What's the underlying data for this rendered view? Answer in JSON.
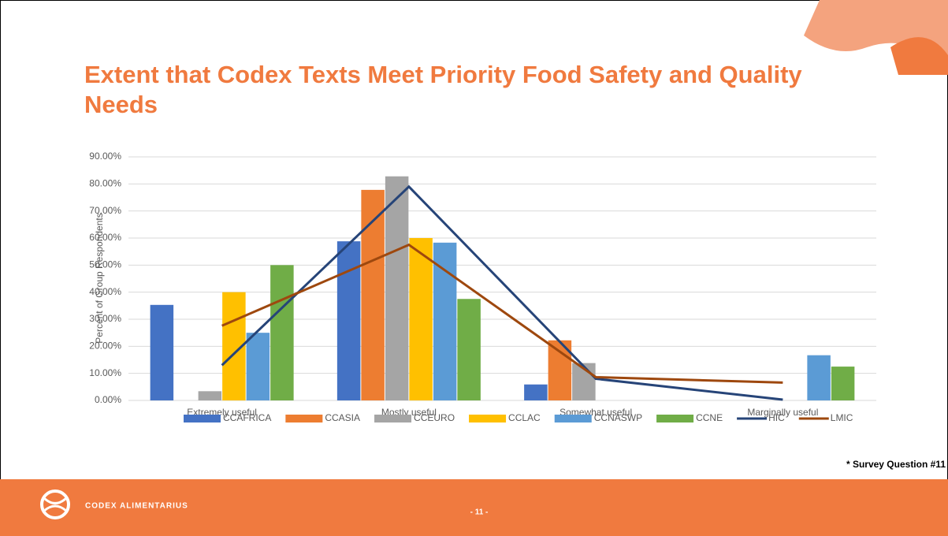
{
  "slide": {
    "title": "Extent that Codex Texts Meet Priority Food Safety and Quality Needs",
    "footer_org": "CODEX ALIMENTARIUS",
    "page_number": "- 11 -",
    "note": "* Survey Question #11"
  },
  "chart_data": {
    "type": "bar",
    "y_label": "Percent of Group Respondents",
    "categories": [
      "Extremely useful",
      "Mostly useful",
      "Somewhat useful",
      "Marginally useful"
    ],
    "ylim": [
      0,
      90
    ],
    "yticks": [
      {
        "value": 0,
        "label": "0.00%"
      },
      {
        "value": 10,
        "label": "10.00%"
      },
      {
        "value": 20,
        "label": "20.00%"
      },
      {
        "value": 30,
        "label": "30.00%"
      },
      {
        "value": 40,
        "label": "40.00%"
      },
      {
        "value": 50,
        "label": "50.00%"
      },
      {
        "value": 60,
        "label": "60.00%"
      },
      {
        "value": 70,
        "label": "70.00%"
      },
      {
        "value": 80,
        "label": "80.00%"
      },
      {
        "value": 90,
        "label": "90.00%"
      }
    ],
    "grid": true,
    "legend": "bottom",
    "series": [
      {
        "name": "CCAFRICA",
        "type": "bar",
        "color": "#4472C4",
        "values": [
          35.3,
          58.8,
          5.9,
          0
        ]
      },
      {
        "name": "CCASIA",
        "type": "bar",
        "color": "#ED7D31",
        "values": [
          0,
          77.8,
          22.2,
          0
        ]
      },
      {
        "name": "CCEURO",
        "type": "bar",
        "color": "#A5A5A5",
        "values": [
          3.4,
          82.8,
          13.8,
          0
        ]
      },
      {
        "name": "CCLAC",
        "type": "bar",
        "color": "#FFC000",
        "values": [
          40,
          60,
          0,
          0
        ]
      },
      {
        "name": "CCNASWP",
        "type": "bar",
        "color": "#5B9BD5",
        "values": [
          25,
          58.3,
          0,
          16.7
        ]
      },
      {
        "name": "CCNE",
        "type": "bar",
        "color": "#70AD47",
        "values": [
          50,
          37.5,
          0,
          12.5
        ]
      },
      {
        "name": "HIC",
        "type": "line",
        "color": "#264478",
        "values": [
          13,
          79,
          8,
          0.3
        ]
      },
      {
        "name": "LMIC",
        "type": "line",
        "color": "#9E480E",
        "values": [
          27.6,
          57.5,
          8.6,
          6.6
        ]
      }
    ]
  }
}
